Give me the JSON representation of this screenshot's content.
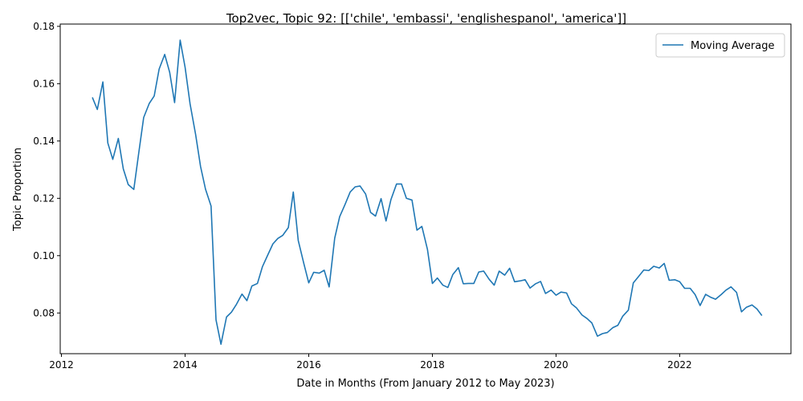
{
  "chart_data": {
    "type": "line",
    "title": "Top2vec, Topic 92: [['chile', 'embassi', 'englishespanol', 'america']]",
    "xlabel": "Date in Months (From January 2012 to May 2023)",
    "ylabel": "Topic Proportion",
    "xlim": [
      2011.98,
      2023.8
    ],
    "ylim": [
      0.0658,
      0.1808
    ],
    "x_ticks": [
      2012,
      2014,
      2016,
      2018,
      2020,
      2022
    ],
    "x_tick_labels": [
      "2012",
      "2014",
      "2016",
      "2018",
      "2020",
      "2022"
    ],
    "y_ticks": [
      0.08,
      0.1,
      0.12,
      0.14,
      0.16,
      0.18
    ],
    "y_tick_labels": [
      "0.08",
      "0.10",
      "0.12",
      "0.14",
      "0.16",
      "0.18"
    ],
    "legend": {
      "position": "top-right",
      "entries": [
        "Moving Average"
      ]
    },
    "grid": false,
    "colors": {
      "line": "#1f77b4",
      "axes": "#000000",
      "legend_border": "#cccccc"
    },
    "series": [
      {
        "name": "Moving Average",
        "x": [
          2012.5,
          2012.58,
          2012.67,
          2012.75,
          2012.83,
          2012.92,
          2013.0,
          2013.08,
          2013.17,
          2013.25,
          2013.33,
          2013.42,
          2013.5,
          2013.58,
          2013.67,
          2013.75,
          2013.83,
          2013.92,
          2014.0,
          2014.08,
          2014.17,
          2014.25,
          2014.33,
          2014.42,
          2014.5,
          2014.58,
          2014.67,
          2014.75,
          2014.83,
          2014.92,
          2015.0,
          2015.08,
          2015.17,
          2015.25,
          2015.33,
          2015.42,
          2015.5,
          2015.58,
          2015.67,
          2015.75,
          2015.83,
          2015.92,
          2016.0,
          2016.08,
          2016.17,
          2016.25,
          2016.33,
          2016.42,
          2016.5,
          2016.58,
          2016.67,
          2016.75,
          2016.83,
          2016.92,
          2017.0,
          2017.08,
          2017.17,
          2017.25,
          2017.33,
          2017.42,
          2017.5,
          2017.58,
          2017.67,
          2017.75,
          2017.83,
          2017.92,
          2018.0,
          2018.08,
          2018.17,
          2018.25,
          2018.33,
          2018.42,
          2018.5,
          2018.58,
          2018.67,
          2018.75,
          2018.83,
          2018.92,
          2019.0,
          2019.08,
          2019.17,
          2019.25,
          2019.33,
          2019.42,
          2019.5,
          2019.58,
          2019.67,
          2019.75,
          2019.83,
          2019.92,
          2020.0,
          2020.08,
          2020.17,
          2020.25,
          2020.33,
          2020.42,
          2020.5,
          2020.58,
          2020.67,
          2020.75,
          2020.83,
          2020.92,
          2021.0,
          2021.08,
          2021.17,
          2021.25,
          2021.33,
          2021.42,
          2021.5,
          2021.58,
          2021.67,
          2021.75,
          2021.83,
          2021.92,
          2022.0,
          2022.08,
          2022.17,
          2022.25,
          2022.33,
          2022.42,
          2022.5,
          2022.58,
          2022.67,
          2022.75,
          2022.83,
          2022.92,
          2023.0,
          2023.08,
          2023.17,
          2023.25,
          2023.33
        ],
        "values": [
          0.1552,
          0.151,
          0.1606,
          0.1393,
          0.1336,
          0.1409,
          0.1303,
          0.1248,
          0.1231,
          0.1358,
          0.1482,
          0.1531,
          0.1557,
          0.1651,
          0.1702,
          0.164,
          0.1534,
          0.1752,
          0.1657,
          0.153,
          0.1423,
          0.1311,
          0.1232,
          0.1173,
          0.0776,
          0.0691,
          0.0786,
          0.0803,
          0.083,
          0.0866,
          0.0843,
          0.0894,
          0.0903,
          0.0961,
          0.0999,
          0.1041,
          0.106,
          0.1071,
          0.1098,
          0.1222,
          0.1053,
          0.0973,
          0.0905,
          0.0942,
          0.0939,
          0.0949,
          0.0891,
          0.1061,
          0.1136,
          0.1175,
          0.1222,
          0.124,
          0.1243,
          0.1215,
          0.1151,
          0.1138,
          0.1199,
          0.1121,
          0.1196,
          0.125,
          0.125,
          0.12,
          0.1194,
          0.1089,
          0.1102,
          0.1022,
          0.0903,
          0.0922,
          0.0897,
          0.0889,
          0.0934,
          0.0958,
          0.0902,
          0.0903,
          0.0903,
          0.0943,
          0.0946,
          0.0917,
          0.0897,
          0.0946,
          0.0932,
          0.0956,
          0.0909,
          0.0912,
          0.0916,
          0.0887,
          0.0902,
          0.091,
          0.0868,
          0.088,
          0.0862,
          0.0873,
          0.087,
          0.0832,
          0.0818,
          0.0793,
          0.0781,
          0.0765,
          0.0719,
          0.0728,
          0.0732,
          0.0749,
          0.0757,
          0.0789,
          0.081,
          0.0905,
          0.0926,
          0.095,
          0.0948,
          0.0963,
          0.0957,
          0.0973,
          0.0914,
          0.0916,
          0.0909,
          0.0886,
          0.0886,
          0.0864,
          0.0826,
          0.0865,
          0.0855,
          0.0848,
          0.0864,
          0.088,
          0.0891,
          0.0872,
          0.0804,
          0.082,
          0.0828,
          0.0814,
          0.0791
        ]
      }
    ]
  }
}
